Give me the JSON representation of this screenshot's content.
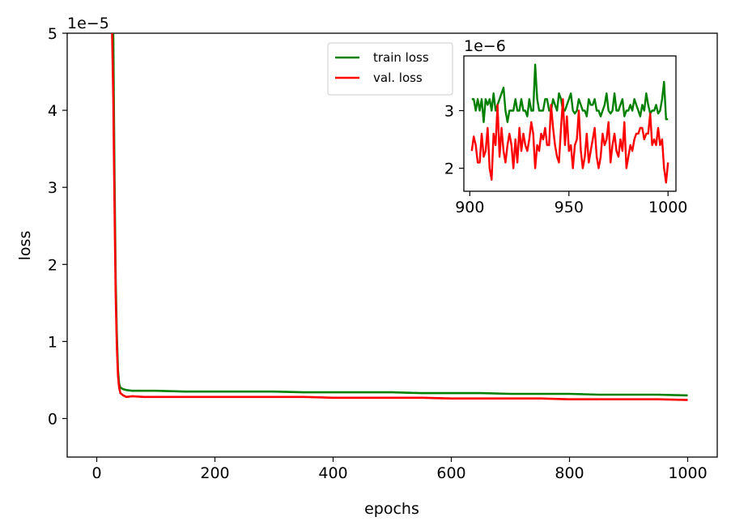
{
  "chart_data": [
    {
      "type": "line",
      "role": "main",
      "xlabel": "epochs",
      "ylabel": "loss",
      "scale_label": "1e−5",
      "xlim": [
        -50,
        1050
      ],
      "ylim": [
        -0.5,
        5
      ],
      "xticks": [
        0,
        200,
        400,
        600,
        800,
        1000
      ],
      "yticks": [
        0,
        1,
        2,
        3,
        4,
        5
      ],
      "grid": false,
      "legend": "top-center",
      "series": [
        {
          "name": "train loss",
          "color": "#008000",
          "x": [
            28,
            30,
            32,
            34,
            36,
            38,
            40,
            45,
            50,
            60,
            80,
            100,
            150,
            200,
            250,
            300,
            350,
            400,
            450,
            500,
            550,
            600,
            650,
            700,
            750,
            800,
            850,
            900,
            950,
            1000
          ],
          "y": [
            5.0,
            3.2,
            1.8,
            1.1,
            0.62,
            0.45,
            0.4,
            0.38,
            0.37,
            0.36,
            0.36,
            0.36,
            0.35,
            0.35,
            0.35,
            0.35,
            0.34,
            0.34,
            0.34,
            0.34,
            0.33,
            0.33,
            0.33,
            0.32,
            0.32,
            0.32,
            0.31,
            0.31,
            0.31,
            0.3
          ]
        },
        {
          "name": "val. loss",
          "color": "#ff0000",
          "x": [
            26,
            28,
            30,
            32,
            34,
            36,
            38,
            40,
            45,
            50,
            60,
            80,
            100,
            150,
            200,
            250,
            300,
            350,
            400,
            450,
            500,
            550,
            600,
            650,
            700,
            750,
            800,
            850,
            900,
            950,
            1000
          ],
          "y": [
            5.0,
            4.2,
            2.8,
            1.6,
            0.95,
            0.55,
            0.4,
            0.33,
            0.3,
            0.28,
            0.29,
            0.28,
            0.28,
            0.28,
            0.28,
            0.28,
            0.28,
            0.28,
            0.27,
            0.27,
            0.27,
            0.27,
            0.26,
            0.26,
            0.26,
            0.26,
            0.25,
            0.25,
            0.25,
            0.25,
            0.24
          ]
        }
      ]
    },
    {
      "type": "line",
      "role": "inset",
      "scale_label": "1e−6",
      "xlim": [
        897,
        1004
      ],
      "ylim": [
        1.6,
        3.95
      ],
      "xticks": [
        900,
        950,
        1000
      ],
      "yticks": [
        2,
        3
      ],
      "grid": false,
      "series": [
        {
          "name": "train loss",
          "color": "#008000",
          "x": [
            901,
            902,
            903,
            904,
            905,
            906,
            907,
            908,
            909,
            910,
            911,
            912,
            913,
            914,
            915,
            916,
            917,
            918,
            919,
            920,
            921,
            922,
            923,
            924,
            925,
            926,
            927,
            928,
            929,
            930,
            931,
            932,
            933,
            934,
            935,
            936,
            937,
            938,
            939,
            940,
            941,
            942,
            943,
            944,
            945,
            946,
            947,
            948,
            949,
            950,
            951,
            952,
            953,
            954,
            955,
            956,
            957,
            958,
            959,
            960,
            961,
            962,
            963,
            964,
            965,
            966,
            967,
            968,
            969,
            970,
            971,
            972,
            973,
            974,
            975,
            976,
            977,
            978,
            979,
            980,
            981,
            982,
            983,
            984,
            985,
            986,
            987,
            988,
            989,
            990,
            991,
            992,
            993,
            994,
            995,
            996,
            997,
            998,
            999,
            1000
          ],
          "y": [
            3.2,
            3.2,
            3.0,
            3.2,
            3.0,
            3.2,
            2.8,
            3.2,
            3.1,
            3.2,
            3.0,
            3.3,
            3.0,
            3.1,
            3.2,
            3.3,
            3.4,
            3.0,
            2.8,
            3.0,
            3.0,
            3.0,
            3.2,
            3.0,
            3.0,
            3.2,
            3.0,
            3.0,
            2.9,
            3.2,
            3.0,
            3.0,
            3.8,
            3.2,
            3.0,
            3.0,
            3.0,
            3.2,
            3.2,
            3.0,
            3.0,
            3.2,
            3.1,
            3.0,
            3.3,
            3.2,
            3.0,
            3.0,
            3.1,
            3.2,
            3.3,
            3.0,
            2.95,
            3.0,
            3.2,
            3.1,
            3.0,
            3.0,
            2.9,
            3.2,
            3.1,
            3.1,
            3.2,
            3.0,
            3.0,
            2.9,
            3.0,
            3.1,
            3.3,
            3.0,
            2.95,
            3.0,
            3.3,
            3.0,
            3.0,
            3.1,
            3.2,
            2.9,
            3.0,
            3.0,
            3.1,
            3.0,
            3.2,
            3.1,
            3.0,
            2.9,
            3.1,
            3.0,
            3.3,
            3.1,
            2.95,
            3.0,
            3.0,
            3.1,
            2.95,
            3.0,
            3.2,
            3.5,
            2.85,
            2.85
          ]
        },
        {
          "name": "val. loss",
          "color": "#ff0000",
          "x": [
            901,
            902,
            903,
            904,
            905,
            906,
            907,
            908,
            909,
            910,
            911,
            912,
            913,
            914,
            915,
            916,
            917,
            918,
            919,
            920,
            921,
            922,
            923,
            924,
            925,
            926,
            927,
            928,
            929,
            930,
            931,
            932,
            933,
            934,
            935,
            936,
            937,
            938,
            939,
            940,
            941,
            942,
            943,
            944,
            945,
            946,
            947,
            948,
            949,
            950,
            951,
            952,
            953,
            954,
            955,
            956,
            957,
            958,
            959,
            960,
            961,
            962,
            963,
            964,
            965,
            966,
            967,
            968,
            969,
            970,
            971,
            972,
            973,
            974,
            975,
            976,
            977,
            978,
            979,
            980,
            981,
            982,
            983,
            984,
            985,
            986,
            987,
            988,
            989,
            990,
            991,
            992,
            993,
            994,
            995,
            996,
            997,
            998,
            999,
            1000
          ],
          "y": [
            2.3,
            2.55,
            2.4,
            2.1,
            2.1,
            2.6,
            2.2,
            2.3,
            2.7,
            2.0,
            1.8,
            2.6,
            2.4,
            3.1,
            2.2,
            2.7,
            2.3,
            2.1,
            2.4,
            2.6,
            2.4,
            2.0,
            2.5,
            2.1,
            2.7,
            2.3,
            2.6,
            2.4,
            2.3,
            2.5,
            2.8,
            2.6,
            2.0,
            2.4,
            2.3,
            2.6,
            2.5,
            2.7,
            2.4,
            2.4,
            3.1,
            2.7,
            2.4,
            2.2,
            2.1,
            2.7,
            3.2,
            2.4,
            2.9,
            2.3,
            2.4,
            2.0,
            2.4,
            2.5,
            3.0,
            2.3,
            2.0,
            2.2,
            2.6,
            2.1,
            2.3,
            2.5,
            2.7,
            2.2,
            2.0,
            2.2,
            2.6,
            2.4,
            2.5,
            2.8,
            2.1,
            2.4,
            2.6,
            2.3,
            2.2,
            2.5,
            2.3,
            2.8,
            2.0,
            2.2,
            2.4,
            2.3,
            2.5,
            2.6,
            2.6,
            2.7,
            2.7,
            2.5,
            2.6,
            2.6,
            2.95,
            2.4,
            2.5,
            2.4,
            2.7,
            2.4,
            2.5,
            2.0,
            1.75,
            2.1
          ]
        }
      ]
    }
  ]
}
